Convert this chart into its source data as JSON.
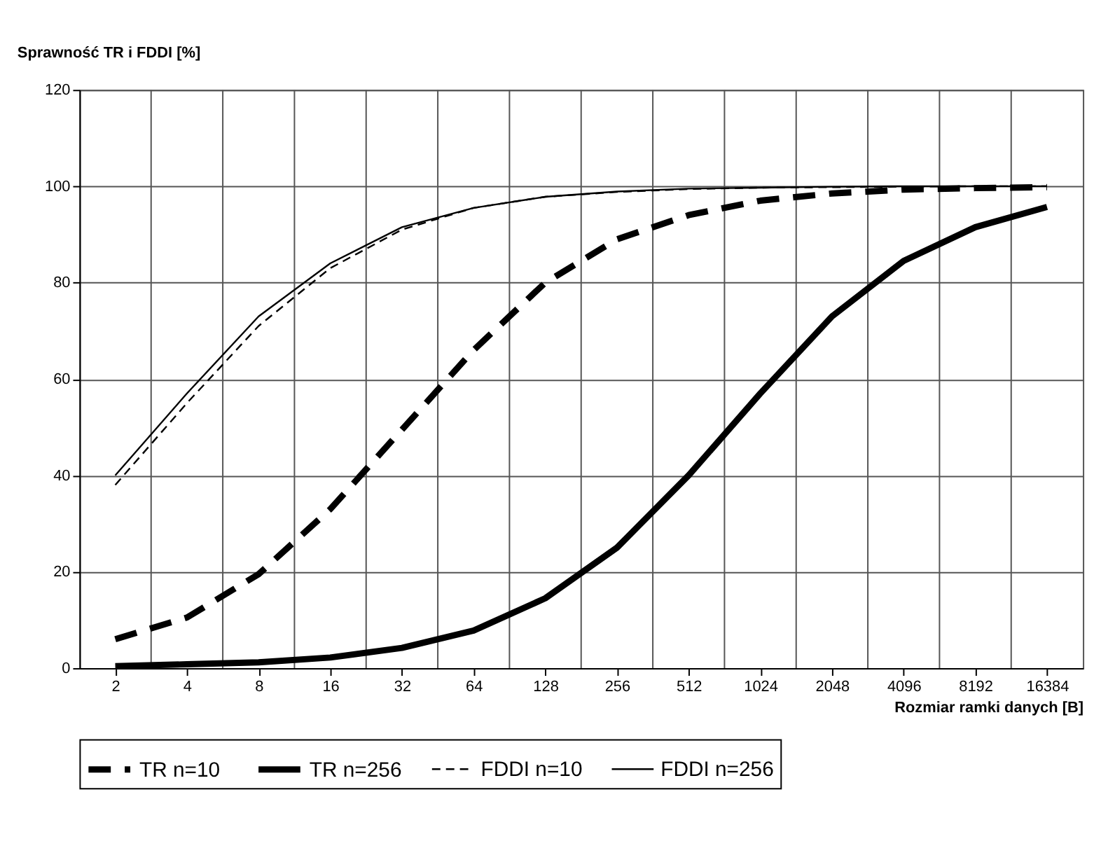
{
  "chart_data": {
    "type": "line",
    "ylabel": "Sprawność TR i FDDI [%]",
    "xlabel": "Rozmiar ramki danych [B]",
    "categories": [
      "2",
      "4",
      "8",
      "16",
      "32",
      "64",
      "128",
      "256",
      "512",
      "1024",
      "2048",
      "4096",
      "8192",
      "16384"
    ],
    "ylim": [
      0,
      120
    ],
    "yticks": [
      0,
      20,
      40,
      60,
      80,
      100,
      120
    ],
    "grid": true,
    "legend": "bottom",
    "series": [
      {
        "name": "TR n=10",
        "color": "#000000",
        "line_style": "dashed",
        "values": [
          6,
          10.5,
          19.5,
          33,
          49.5,
          66,
          80,
          89,
          94,
          97,
          98.5,
          99.3,
          99.6,
          99.8
        ]
      },
      {
        "name": "TR n=256",
        "color": "#000000",
        "line_style": "solid",
        "values": [
          0.4,
          0.8,
          1.2,
          2.2,
          4.2,
          7.8,
          14.5,
          25,
          40,
          57,
          73,
          84.5,
          91.5,
          95.7
        ]
      },
      {
        "name": "FDDI n=10",
        "color": "#000000",
        "line_style": "dashed",
        "values": [
          38,
          55,
          71,
          83,
          91,
          95.5,
          97.8,
          98.8,
          99.4,
          99.7,
          99.8,
          99.9,
          100,
          100
        ]
      },
      {
        "name": "FDDI n=256",
        "color": "#000000",
        "line_style": "solid",
        "values": [
          40,
          57,
          73,
          84,
          91.5,
          95.5,
          97.8,
          98.9,
          99.5,
          99.7,
          99.9,
          100,
          100,
          100
        ]
      }
    ]
  }
}
